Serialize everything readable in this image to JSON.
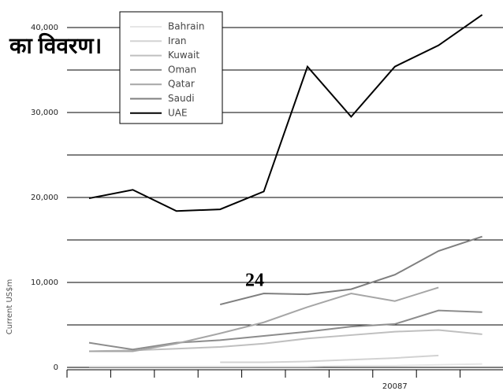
{
  "chart_data": {
    "type": "line",
    "y_axis_label": "Current US$m",
    "annotations": [
      "का विवरण।",
      "24"
    ],
    "categories": [
      null,
      null,
      null,
      null,
      null,
      null,
      null,
      "20087",
      null,
      null
    ],
    "series": [
      {
        "name": "Bahrain",
        "color": "#e6e6e6",
        "values": [
          100,
          100,
          100,
          100,
          100,
          100,
          200,
          200,
          300,
          400
        ]
      },
      {
        "name": "Iran",
        "color": "#d2d2d2",
        "values": [
          null,
          null,
          null,
          600,
          600,
          700,
          900,
          1100,
          1400,
          null
        ]
      },
      {
        "name": "Kuwait",
        "color": "#bfbfbf",
        "values": [
          1900,
          2000,
          2200,
          2400,
          2800,
          3400,
          3800,
          4200,
          4400,
          3900
        ]
      },
      {
        "name": "Oman",
        "color": "#8c8c8c",
        "values": [
          2900,
          2100,
          2900,
          3200,
          3700,
          4200,
          4800,
          5100,
          6700,
          6500
        ]
      },
      {
        "name": "Qatar",
        "color": "#a6a6a6",
        "values": [
          1900,
          1900,
          2800,
          4000,
          5300,
          7100,
          8700,
          7800,
          9400,
          null
        ]
      },
      {
        "name": "Saudi",
        "color": "#7f7f7f",
        "values": [
          null,
          null,
          null,
          7400,
          8700,
          8600,
          9200,
          10900,
          13700,
          15400
        ]
      },
      {
        "name": "UAE",
        "color": "#000000",
        "values": [
          19900,
          20900,
          18400,
          18600,
          20700,
          35400,
          29500,
          35400,
          37900,
          41500
        ]
      }
    ],
    "ylim": [
      -280,
      43240
    ],
    "yticks": [
      0,
      {
        "value": 10000,
        "label": "10,000"
      },
      {
        "value": 20000,
        "label": "20,000"
      },
      {
        "value": 30000,
        "label": "30,000"
      },
      {
        "value": 40000,
        "label": "40,000"
      }
    ],
    "minor_grid_yticks": [
      5000,
      15000,
      25000,
      35000
    ],
    "grid": true,
    "legend": "upper left"
  }
}
